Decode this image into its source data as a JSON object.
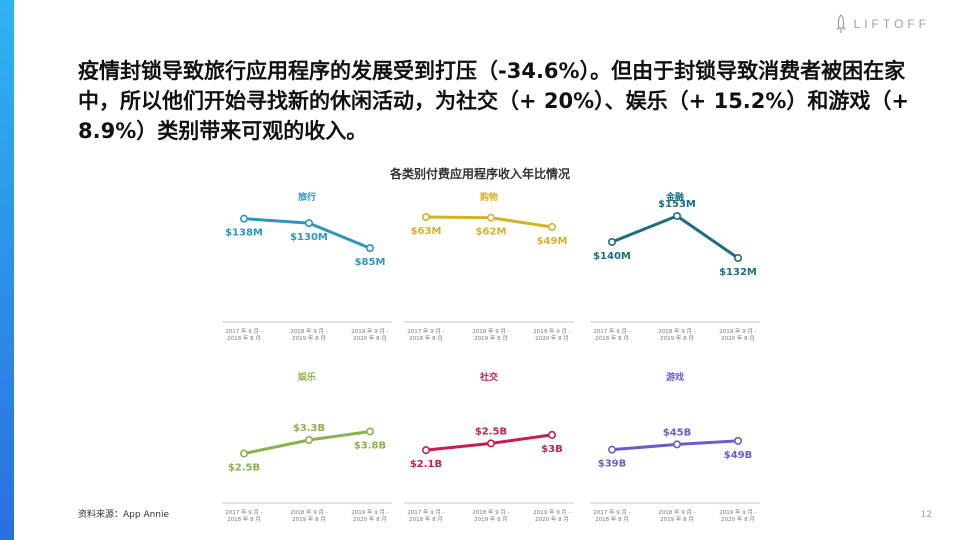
{
  "brand": {
    "logo_text": "LIFTOFF"
  },
  "headline": "疫情封锁导致旅行应用程序的发展受到打压（-34.6%）。但由于封锁导致消费者被困在家中，所以他们开始寻找新的休闲活动，为社交（+ 20%）、娱乐（+ 15.2%）和游戏（+ 8.9%）类别带来可观的收入。",
  "source": "资料来源：App Annie",
  "page_number": "12",
  "chart_data": {
    "title": "各类别付费应用程序收入年比情况",
    "type": "line",
    "x_categories": [
      [
        "2017 年 9 月 -",
        "2018 年 8 月"
      ],
      [
        "2018 年 9 月 -",
        "2019 年 8 月"
      ],
      [
        "2019 年 9 月 -",
        "2020 年 8 月"
      ]
    ],
    "panels": [
      {
        "name": "旅行",
        "color": "#2d96c0",
        "values": [
          138,
          130,
          85
        ],
        "labels": [
          "$138M",
          "$130M",
          "$85M"
        ],
        "ylim": [
          60,
          150
        ]
      },
      {
        "name": "购物",
        "color": "#d4b12a",
        "values": [
          63,
          62,
          49
        ],
        "labels": [
          "$63M",
          "$62M",
          "$49M"
        ],
        "ylim": [
          0,
          70
        ]
      },
      {
        "name": "金融",
        "color": "#1a6e7e",
        "values": [
          140,
          153,
          132
        ],
        "labels": [
          "$140M",
          "$153M",
          "$132M"
        ],
        "ylim": [
          130,
          155
        ]
      },
      {
        "name": "娱乐",
        "color": "#8db04f",
        "values": [
          2.5,
          3.3,
          3.8
        ],
        "labels": [
          "$2.5B",
          "$3.3B",
          "$3.8B"
        ],
        "ylim": [
          2.0,
          4.6
        ]
      },
      {
        "name": "社交",
        "color": "#c71e4e",
        "values": [
          2.1,
          2.5,
          3.0
        ],
        "labels": [
          "$2.1B",
          "$2.5B",
          "$3B"
        ],
        "ylim": [
          1.4,
          4.0
        ]
      },
      {
        "name": "游戏",
        "color": "#6a5ccf",
        "values": [
          39,
          45,
          49
        ],
        "labels": [
          "$39B",
          "$45B",
          "$49B"
        ],
        "ylim": [
          25,
          75
        ]
      }
    ]
  }
}
